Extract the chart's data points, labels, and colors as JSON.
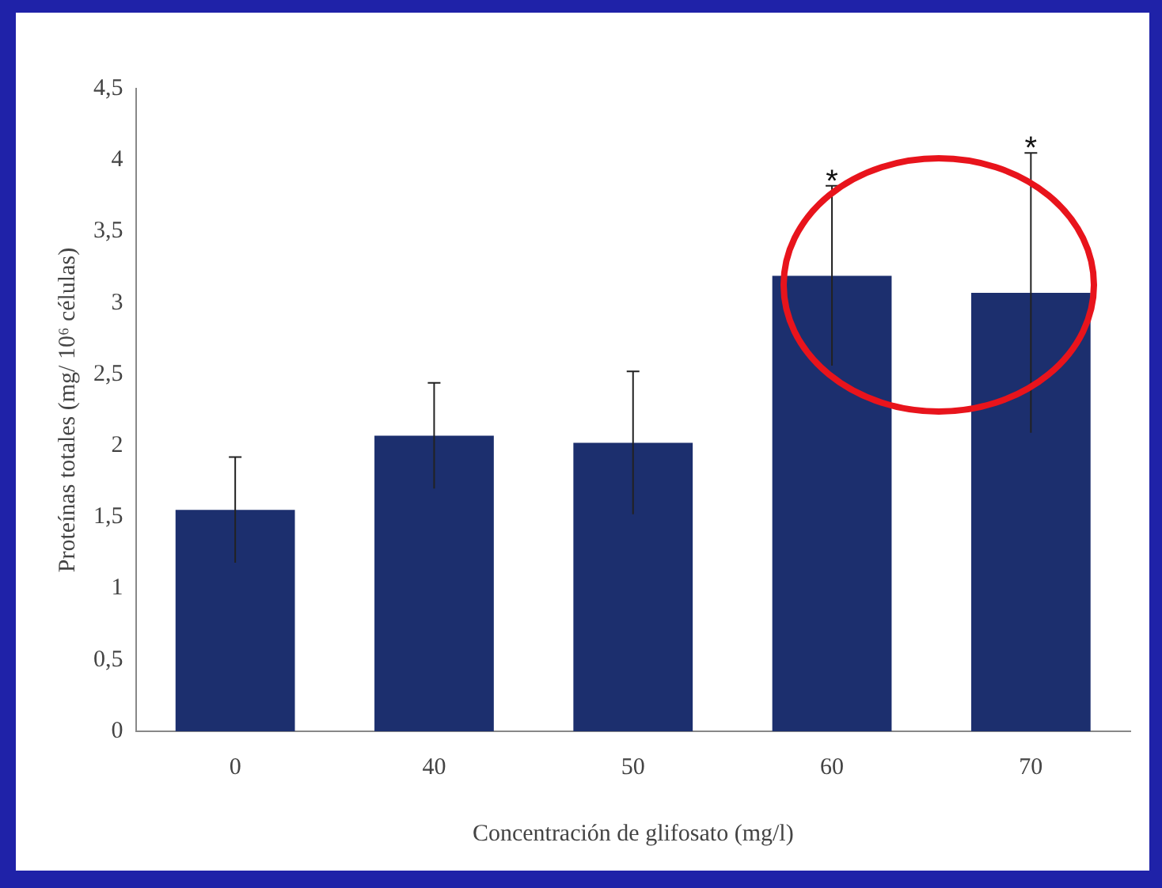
{
  "chart_data": {
    "type": "bar",
    "xlabel": "Concentración de glifosato (mg/l)",
    "ylabel": "Proteínas totales (mg/ 10⁶ células)",
    "categories": [
      "0",
      "40",
      "50",
      "60",
      "70"
    ],
    "values": [
      1.55,
      2.07,
      2.02,
      3.19,
      3.07
    ],
    "errors": [
      0.37,
      0.37,
      0.5,
      0.63,
      0.98
    ],
    "color": "#1c2f6e",
    "ylim": [
      0,
      4.5
    ],
    "yticks": [
      0,
      {
        "value": 0.5,
        "label": "0,5"
      },
      1,
      {
        "value": 1.5,
        "label": "1,5"
      },
      2,
      {
        "value": 2.5,
        "label": "2,5"
      },
      3,
      {
        "value": 3.5,
        "label": "3,5"
      },
      4,
      {
        "value": 4.5,
        "label": "4,5"
      }
    ],
    "grid": false,
    "legend": false,
    "annotations": [
      {
        "text": "*",
        "x": "60"
      },
      {
        "text": "*",
        "x": "70"
      }
    ]
  }
}
